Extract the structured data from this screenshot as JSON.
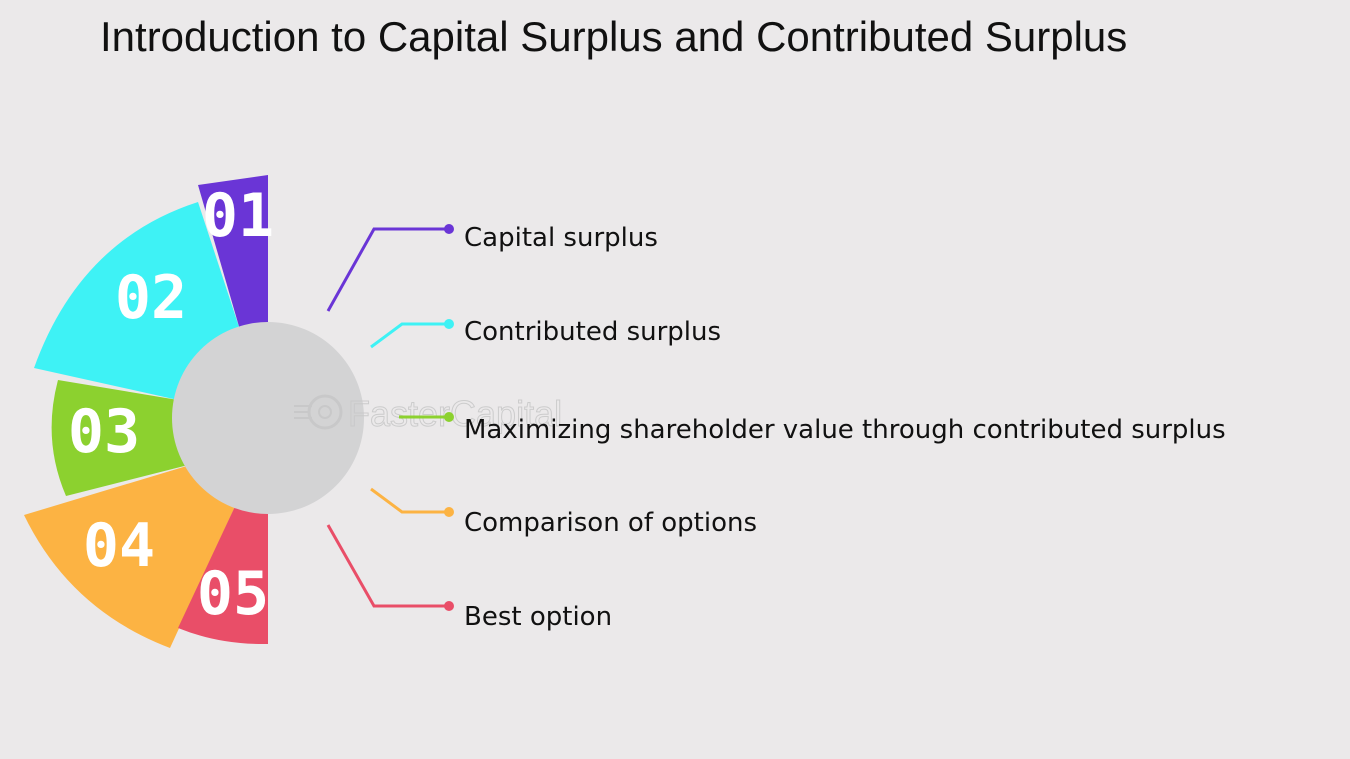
{
  "title": "Introduction to Capital Surplus and Contributed Surplus",
  "watermark": "FasterCapital",
  "items": [
    {
      "number": "01",
      "label": "Capital surplus",
      "color": "#6a35d6"
    },
    {
      "number": "02",
      "label": "Contributed surplus",
      "color": "#3ef2f5"
    },
    {
      "number": "03",
      "label": "Maximizing shareholder value through contributed surplus",
      "color": "#8cd12f"
    },
    {
      "number": "04",
      "label": "Comparison of options",
      "color": "#fcb343"
    },
    {
      "number": "05",
      "label": "Best option",
      "color": "#e94e68"
    }
  ],
  "hub_color": "#d3d3d4"
}
